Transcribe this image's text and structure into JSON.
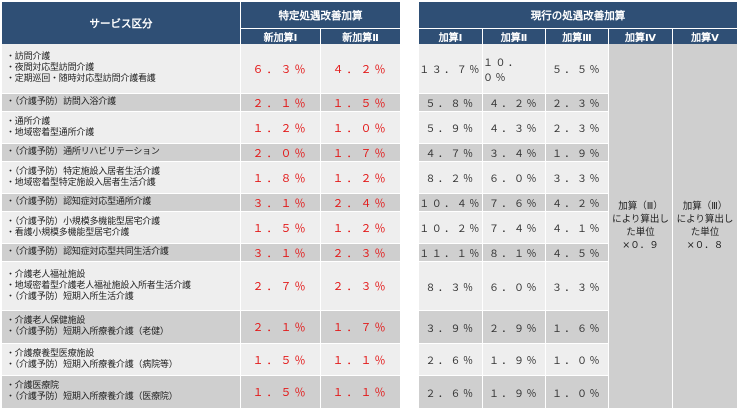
{
  "left_header": {
    "service_col": "サービス区分",
    "tokutei_group": "特定処遇改善加算",
    "shin1": "新加算Ⅰ",
    "shin2": "新加算Ⅱ"
  },
  "right_header": {
    "group": "現行の処遇改善加算",
    "k1": "加算Ⅰ",
    "k2": "加算Ⅱ",
    "k3": "加算Ⅲ",
    "k4": "加算Ⅳ",
    "k5": "加算Ⅴ"
  },
  "merged_k4": [
    "加算（Ⅲ）",
    "により算出し",
    "た単位",
    "×０．９"
  ],
  "merged_k5": [
    "加算（Ⅲ）",
    "により算出し",
    "た単位",
    "×０．８"
  ],
  "rows": [
    {
      "services": [
        "・訪問介護",
        "・夜間対応型訪問介護",
        "・定期巡回・随時対応型訪問介護看護"
      ],
      "shin1": "６．３％",
      "shin2": "４．２％",
      "k1": "１３．７％",
      "k2": "１０．０％",
      "k3": "５．５％"
    },
    {
      "services": [
        "・（介護予防）訪問入浴介護"
      ],
      "shin1": "２．１％",
      "shin2": "１．５％",
      "k1": "５．８％",
      "k2": "４．２％",
      "k3": "２．３％"
    },
    {
      "services": [
        "・通所介護",
        "・地域密着型通所介護"
      ],
      "shin1": "１．２％",
      "shin2": "１．０％",
      "k1": "５．９％",
      "k2": "４．３％",
      "k3": "２．３％"
    },
    {
      "services": [
        "・（介護予防）通所リハビリテーション"
      ],
      "shin1": "２．０％",
      "shin2": "１．７％",
      "k1": "４．７％",
      "k2": "３．４％",
      "k3": "１．９％"
    },
    {
      "services": [
        "・（介護予防）特定施設入居者生活介護",
        "・地域密着型特定施設入居者生活介護"
      ],
      "shin1": "１．８％",
      "shin2": "１．２％",
      "k1": "８．２％",
      "k2": "６．０％",
      "k3": "３．３％"
    },
    {
      "services": [
        "・（介護予防）認知症対応型通所介護"
      ],
      "shin1": "３．１％",
      "shin2": "２．４％",
      "k1": "１０．４％",
      "k2": "７．６％",
      "k3": "４．２％"
    },
    {
      "services": [
        "・（介護予防）小規模多機能型居宅介護",
        "・看護小規模多機能型居宅介護"
      ],
      "shin1": "１．５％",
      "shin2": "１．２％",
      "k1": "１０．２％",
      "k2": "７．４％",
      "k3": "４．１％"
    },
    {
      "services": [
        "・（介護予防）認知症対応型共同生活介護"
      ],
      "shin1": "３．１％",
      "shin2": "２．３％",
      "k1": "１１．１％",
      "k2": "８．１％",
      "k3": "４．５％"
    },
    {
      "services": [
        "・介護老人福祉施設",
        "・地域密着型介護老人福祉施設入所者生活介護",
        "・（介護予防）短期入所生活介護"
      ],
      "shin1": "２．７％",
      "shin2": "２．３％",
      "k1": "８．３％",
      "k2": "６．０％",
      "k3": "３．３％"
    },
    {
      "services": [
        "・介護老人保健施設",
        "・（介護予防）短期入所療養介護（老健）"
      ],
      "shin1": "２．１％",
      "shin2": "１．７％",
      "k1": "３．９％",
      "k2": "２．９％",
      "k3": "１．６％"
    },
    {
      "services": [
        "・介護療養型医療施設",
        "・（介護予防）短期入所療養介護（病院等）"
      ],
      "shin1": "１．５％",
      "shin2": "１．１％",
      "k1": "２．６％",
      "k2": "１．９％",
      "k3": "１．０％"
    },
    {
      "services": [
        "・介護医療院",
        "・（介護予防）短期入所療養介護（医療院）"
      ],
      "shin1": "１．５％",
      "shin2": "１．１％",
      "k1": "２．６％",
      "k2": "１．９％",
      "k3": "１．０％"
    }
  ]
}
